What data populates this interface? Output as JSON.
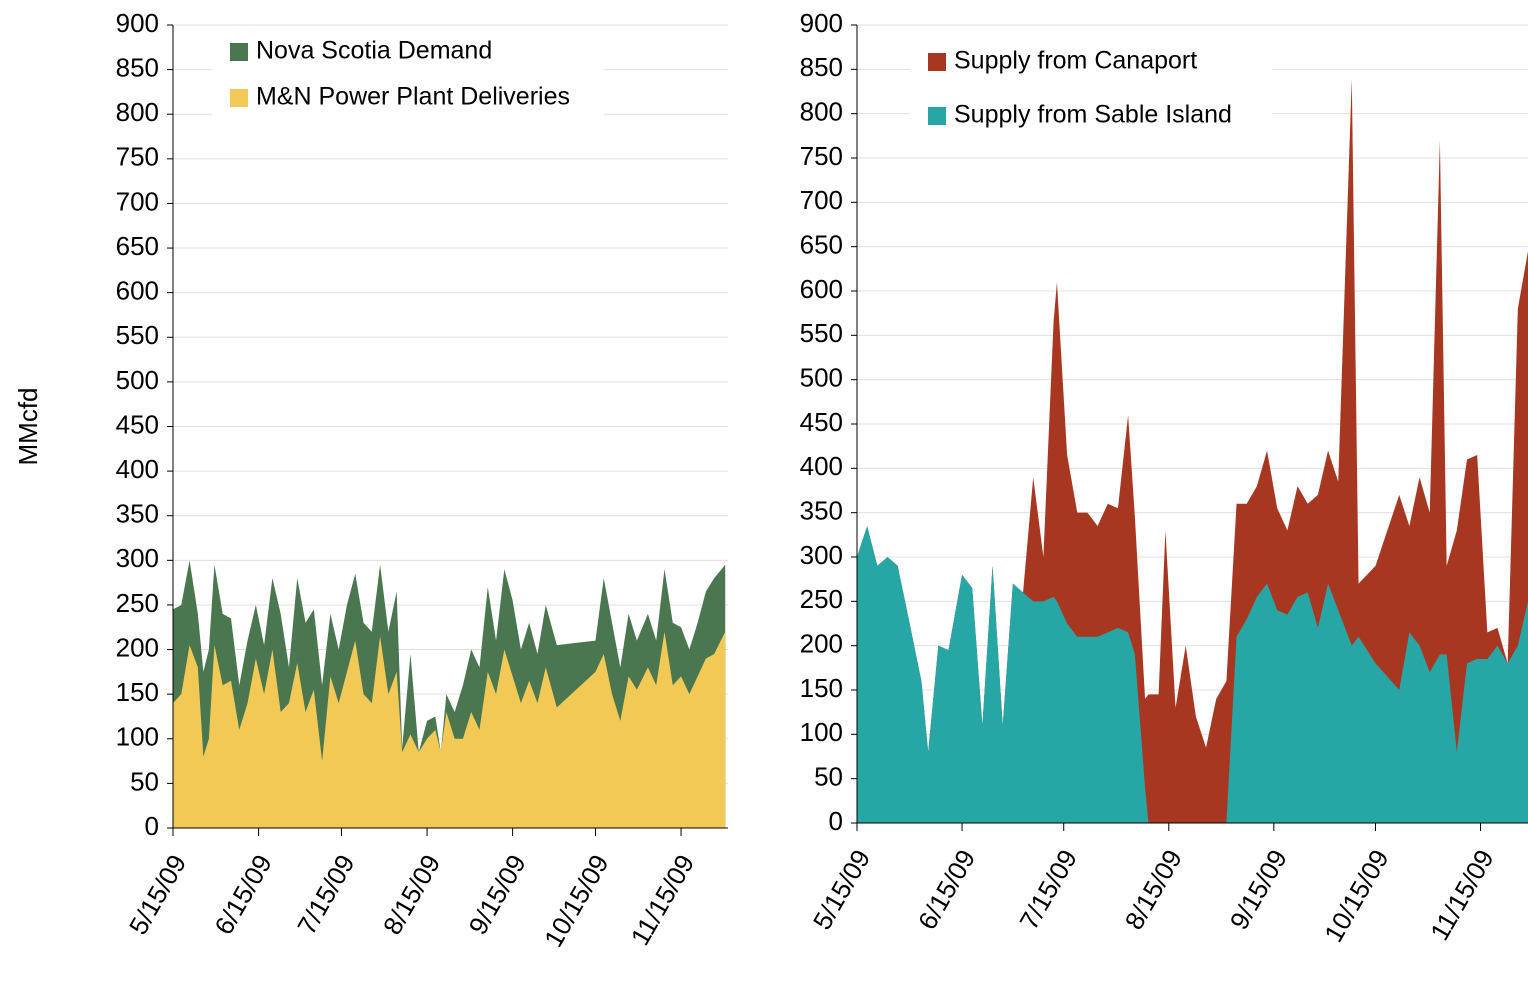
{
  "chart_data": [
    {
      "type": "area",
      "stacked": false,
      "y_label": "MMcfd",
      "x": [
        "5/15/09",
        "5/18/09",
        "5/21/09",
        "5/24/09",
        "5/26/09",
        "5/28/09",
        "5/30/09",
        "6/2/09",
        "6/5/09",
        "6/8/09",
        "6/11/09",
        "6/14/09",
        "6/17/09",
        "6/20/09",
        "6/23/09",
        "6/26/09",
        "6/29/09",
        "7/2/09",
        "7/5/09",
        "7/8/09",
        "7/11/09",
        "7/14/09",
        "7/17/09",
        "7/20/09",
        "7/23/09",
        "7/26/09",
        "7/29/09",
        "8/1/09",
        "8/4/09",
        "8/6/09",
        "8/9/09",
        "8/12/09",
        "8/15/09",
        "8/18/09",
        "8/20/09",
        "8/22/09",
        "8/25/09",
        "8/28/09",
        "8/31/09",
        "9/3/09",
        "9/6/09",
        "9/9/09",
        "9/12/09",
        "9/15/09",
        "9/18/09",
        "9/21/09",
        "9/24/09",
        "9/27/09",
        "10/1/09",
        "10/15/09",
        "10/18/09",
        "10/21/09",
        "10/24/09",
        "10/27/09",
        "10/30/09",
        "11/3/09",
        "11/6/09",
        "11/9/09",
        "11/12/09",
        "11/15/09",
        "11/18/09",
        "11/21/09",
        "11/24/09",
        "11/27/09",
        "12/1/09"
      ],
      "series": [
        {
          "name": "Nova Scotia Demand",
          "color": "#4a7650",
          "values": [
            245,
            250,
            300,
            240,
            175,
            200,
            295,
            240,
            235,
            160,
            210,
            250,
            205,
            280,
            240,
            180,
            280,
            230,
            245,
            160,
            240,
            200,
            250,
            285,
            230,
            220,
            295,
            220,
            265,
            90,
            195,
            85,
            120,
            125,
            85,
            150,
            130,
            160,
            200,
            180,
            270,
            210,
            290,
            255,
            200,
            230,
            195,
            250,
            205,
            210,
            280,
            230,
            180,
            240,
            210,
            240,
            210,
            290,
            230,
            225,
            200,
            230,
            265,
            280,
            295
          ]
        },
        {
          "name": "M&N Power Plant Deliveries",
          "color": "#f2c955",
          "values": [
            140,
            150,
            205,
            180,
            80,
            100,
            205,
            160,
            165,
            110,
            140,
            190,
            150,
            200,
            130,
            140,
            185,
            130,
            155,
            75,
            170,
            140,
            175,
            210,
            150,
            140,
            215,
            150,
            175,
            85,
            105,
            85,
            100,
            110,
            85,
            130,
            100,
            100,
            130,
            110,
            175,
            150,
            200,
            170,
            140,
            165,
            140,
            180,
            135,
            175,
            195,
            150,
            120,
            170,
            155,
            180,
            160,
            220,
            160,
            170,
            150,
            170,
            190,
            195,
            220
          ]
        }
      ],
      "xlim": [
        "5/15/09",
        "12/2/09"
      ],
      "xticks": [
        "5/15/09",
        "6/15/09",
        "7/15/09",
        "8/15/09",
        "9/15/09",
        "10/15/09",
        "11/15/09"
      ],
      "ylim": [
        0,
        900
      ],
      "yticks": [
        0,
        50,
        100,
        150,
        200,
        250,
        300,
        350,
        400,
        450,
        500,
        550,
        600,
        650,
        700,
        750,
        800,
        850,
        900
      ],
      "grid": true
    },
    {
      "type": "area",
      "stacked": true,
      "x": [
        "5/15/09",
        "5/18/09",
        "5/21/09",
        "5/24/09",
        "5/27/09",
        "5/30/09",
        "6/3/09",
        "6/5/09",
        "6/8/09",
        "6/11/09",
        "6/15/09",
        "6/18/09",
        "6/21/09",
        "6/24/09",
        "6/27/09",
        "6/30/09",
        "7/3/09",
        "7/6/09",
        "7/9/09",
        "7/12/09",
        "7/13/09",
        "7/16/09",
        "7/19/09",
        "7/22/09",
        "7/25/09",
        "7/28/09",
        "7/31/09",
        "8/3/09",
        "8/5/09",
        "8/8/09",
        "8/9/09",
        "8/12/09",
        "8/14/09",
        "8/17/09",
        "8/20/09",
        "8/23/09",
        "8/26/09",
        "8/29/09",
        "9/1/09",
        "9/4/09",
        "9/7/09",
        "9/10/09",
        "9/13/09",
        "9/16/09",
        "9/19/09",
        "9/22/09",
        "9/25/09",
        "9/28/09",
        "10/1/09",
        "10/4/09",
        "10/8/09",
        "10/10/09",
        "10/15/09",
        "10/22/09",
        "10/25/09",
        "10/28/09",
        "10/31/09",
        "11/3/09",
        "11/5/09",
        "11/8/09",
        "11/11/09",
        "11/14/09",
        "11/17/09",
        "11/20/09",
        "11/23/09",
        "11/26/09",
        "11/29/09"
      ],
      "series": [
        {
          "name": "Supply from Sable Island",
          "color": "#27a6a6",
          "values": [
            300,
            335,
            290,
            300,
            290,
            235,
            160,
            80,
            200,
            195,
            280,
            265,
            110,
            290,
            110,
            270,
            260,
            250,
            250,
            255,
            250,
            225,
            210,
            210,
            210,
            215,
            220,
            215,
            190,
            40,
            0,
            0,
            0,
            0,
            0,
            0,
            0,
            0,
            0,
            210,
            230,
            255,
            270,
            240,
            235,
            255,
            260,
            220,
            270,
            240,
            200,
            210,
            180,
            150,
            215,
            200,
            170,
            190,
            190,
            80,
            180,
            185,
            185,
            200,
            180,
            200,
            250
          ]
        },
        {
          "name": "Supply from Canaport",
          "color": "#a83722",
          "values": [
            0,
            0,
            0,
            0,
            0,
            0,
            0,
            0,
            0,
            0,
            0,
            0,
            0,
            0,
            0,
            0,
            0,
            140,
            50,
            310,
            360,
            190,
            140,
            140,
            125,
            145,
            135,
            245,
            155,
            100,
            145,
            145,
            330,
            130,
            200,
            120,
            85,
            140,
            160,
            150,
            130,
            125,
            150,
            115,
            95,
            125,
            100,
            150,
            150,
            145,
            640,
            60,
            110,
            220,
            120,
            190,
            180,
            580,
            100,
            250,
            230,
            230,
            30,
            20,
            0,
            380,
            395
          ]
        }
      ],
      "xlim": [
        "5/15/09",
        "11/29/09"
      ],
      "xticks": [
        "5/15/09",
        "6/15/09",
        "7/15/09",
        "8/15/09",
        "9/15/09",
        "10/15/09",
        "11/15/09"
      ],
      "ylim": [
        0,
        900
      ],
      "yticks": [
        0,
        50,
        100,
        150,
        200,
        250,
        300,
        350,
        400,
        450,
        500,
        550,
        600,
        650,
        700,
        750,
        800,
        850,
        900
      ],
      "grid": true
    }
  ]
}
